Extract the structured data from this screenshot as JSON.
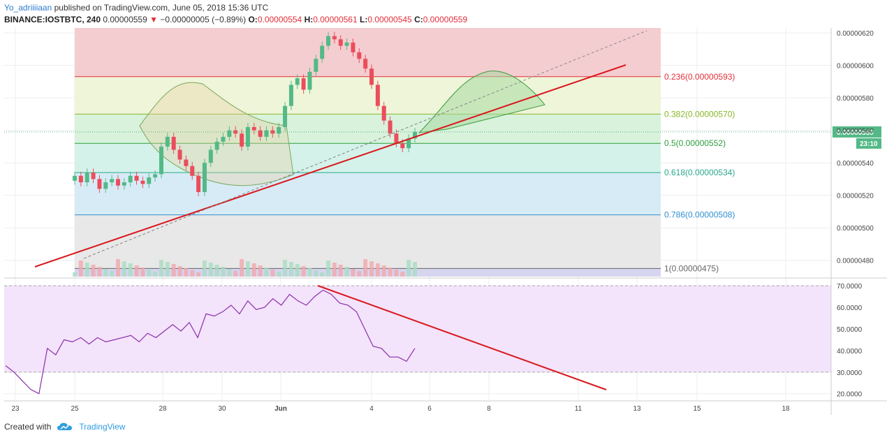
{
  "header": {
    "author": "Yo_adriiiiaan",
    "published": "published on TradingView.com, June 05, 2018 15:36 UTC",
    "symbol": "BINANCE:IOSTBTC, 240",
    "last": "0.00000559",
    "change_arrow": "▼",
    "change": "−0.00000005 (−0.89%)",
    "o_label": "O:",
    "o_value": "0.00000554",
    "h_label": "H:",
    "h_value": "0.00000561",
    "l_label": "L:",
    "l_value": "0.00000545",
    "c_label": "C:",
    "c_value": "0.00000559"
  },
  "footer": {
    "created_with": "Created with",
    "brand": "TradingView",
    "logo_icon": "cloud-icon"
  },
  "colors": {
    "up": "#53b987",
    "down": "#eb4d5c",
    "trend": "#d9171c",
    "rsi": "#8a2fa8",
    "rsi_bg": "#f3e3fb",
    "price_tag": "#53b987"
  },
  "chart_data": [
    {
      "type": "candlestick",
      "title": "",
      "price_axis": {
        "ticks": [
          "0.00000620",
          "0.00000600",
          "0.00000580",
          "0.00000560",
          "0.00000540",
          "0.00000520",
          "0.00000500",
          "0.00000480"
        ],
        "range": [
          4.7e-06,
          6.23e-06
        ]
      },
      "x_axis": {
        "ticks": [
          "23",
          "25",
          "28",
          "30",
          "Jun",
          "4",
          "6",
          "8",
          "11",
          "13",
          "15",
          "18"
        ]
      },
      "current_price": "0.00000559",
      "countdown": "23:10",
      "fib_levels": [
        {
          "label": "0.236(0.00000593)",
          "value": 5.93e-06,
          "color": "#e0303a"
        },
        {
          "label": "0.382(0.00000570)",
          "value": 5.7e-06,
          "color": "#8ab628"
        },
        {
          "label": "0.5(0.00000552)",
          "value": 5.52e-06,
          "color": "#2e9e3e"
        },
        {
          "label": "0.618(0.00000534)",
          "value": 5.34e-06,
          "color": "#2aa98a"
        },
        {
          "label": "0.786(0.00000508)",
          "value": 5.08e-06,
          "color": "#2e8fd0"
        },
        {
          "label": "1(0.00000475)",
          "value": 4.75e-06,
          "color": "#666666"
        }
      ],
      "fib_top_value": 6.23e-06,
      "candles_close": [
        5.32e-06,
        5.28e-06,
        5.34e-06,
        5.3e-06,
        5.24e-06,
        5.28e-06,
        5.3e-06,
        5.26e-06,
        5.28e-06,
        5.32e-06,
        5.29e-06,
        5.27e-06,
        5.31e-06,
        5.33e-06,
        5.5e-06,
        5.56e-06,
        5.48e-06,
        5.42e-06,
        5.38e-06,
        5.32e-06,
        5.22e-06,
        5.4e-06,
        5.48e-06,
        5.53e-06,
        5.56e-06,
        5.6e-06,
        5.58e-06,
        5.5e-06,
        5.62e-06,
        5.6e-06,
        5.56e-06,
        5.6e-06,
        5.58e-06,
        5.62e-06,
        5.75e-06,
        5.88e-06,
        5.92e-06,
        5.85e-06,
        5.96e-06,
        6.04e-06,
        6.12e-06,
        6.18e-06,
        6.16e-06,
        6.12e-06,
        6.14e-06,
        6.08e-06,
        6.04e-06,
        5.98e-06,
        5.88e-06,
        5.75e-06,
        5.66e-06,
        5.58e-06,
        5.52e-06,
        5.49e-06,
        5.55e-06,
        5.59e-06
      ]
    },
    {
      "type": "line",
      "title": "",
      "series": [
        {
          "name": "",
          "values": [
            33,
            30,
            26,
            22,
            20,
            41,
            38,
            45,
            44,
            46,
            43,
            46,
            44,
            45,
            46,
            47,
            44,
            48,
            46,
            49,
            52,
            49,
            53,
            46,
            57,
            56,
            58,
            61,
            57,
            63,
            59,
            60,
            64,
            61,
            66,
            63,
            61,
            65,
            68,
            66,
            62,
            61,
            58,
            50,
            42,
            41,
            37,
            37,
            35,
            41
          ]
        }
      ],
      "y_axis": {
        "ticks": [
          "70.0000",
          "60.0000",
          "50.0000",
          "40.0000",
          "30.0000",
          "20.0000"
        ],
        "range": [
          17,
          72
        ]
      },
      "bands": [
        30,
        70
      ]
    }
  ]
}
